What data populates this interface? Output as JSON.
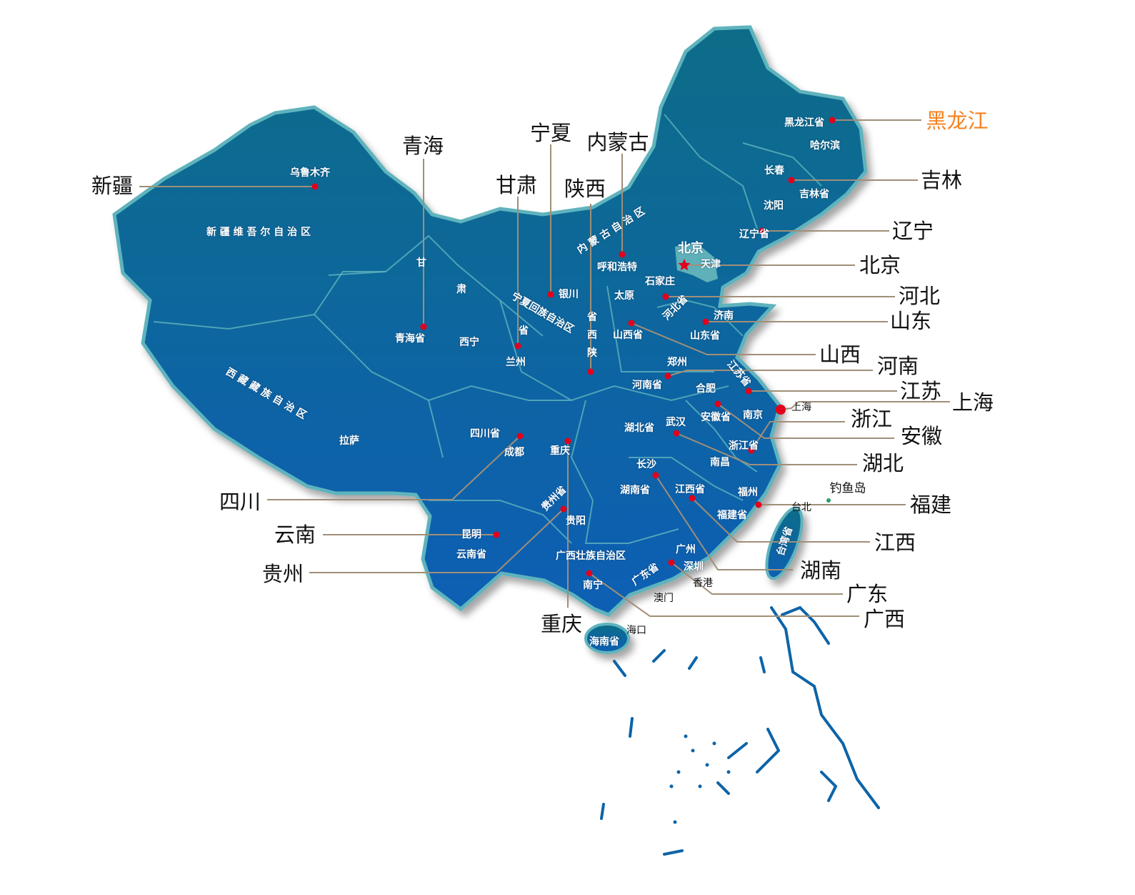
{
  "colors": {
    "map_top": "#0b6d88",
    "map_bottom": "#0a5fb4",
    "border": "#5fb3bd",
    "marker": "#e3001b",
    "leader_line": "#a08f78",
    "highlight_label": "#f5821f"
  },
  "province_labels": [
    "黑龙江",
    "新疆",
    "青海",
    "宁夏",
    "内蒙古",
    "甘肃",
    "陕西",
    "吉林",
    "辽宁",
    "北京",
    "河北",
    "山东",
    "山西",
    "河南",
    "江苏",
    "上海",
    "浙江",
    "安徽",
    "湖北",
    "福建",
    "江西",
    "湖南",
    "广东",
    "广西",
    "四川",
    "云南",
    "贵州",
    "重庆"
  ],
  "map_labels": [
    "乌鲁木齐",
    "新 疆 维 吾 尔 自 治 区",
    "甘",
    "肃",
    "省",
    "青海省",
    "西宁",
    "兰州",
    "宁夏回族自治区",
    "银川",
    "陕",
    "西",
    "省",
    "内 蒙 古 自 治 区",
    "呼和浩特",
    "北京",
    "天津",
    "石家庄",
    "太原",
    "河北省",
    "济南",
    "山东省",
    "山西省",
    "郑州",
    "江苏省",
    "河南省",
    "合肥",
    "安徽省",
    "南京",
    "湖北省",
    "武汉",
    "浙江省",
    "南昌",
    "长沙",
    "湖南省",
    "江西省",
    "福州",
    "福建省",
    "台湾省",
    "广州",
    "深圳",
    "广东省",
    "广西壮族自治区",
    "南宁",
    "海南省",
    "贵阳",
    "贵州省",
    "重庆",
    "四川省",
    "成都",
    "昆明",
    "云南省",
    "西 藏 藏 族 自 治 区",
    "拉萨",
    "黑龙江省",
    "哈尔滨",
    "长春",
    "吉林省",
    "沈阳",
    "辽宁省"
  ],
  "outside_labels": [
    "上海",
    "台北",
    "钓鱼岛",
    "香港",
    "澳门",
    "海口"
  ],
  "capital_marker": "star-icon"
}
